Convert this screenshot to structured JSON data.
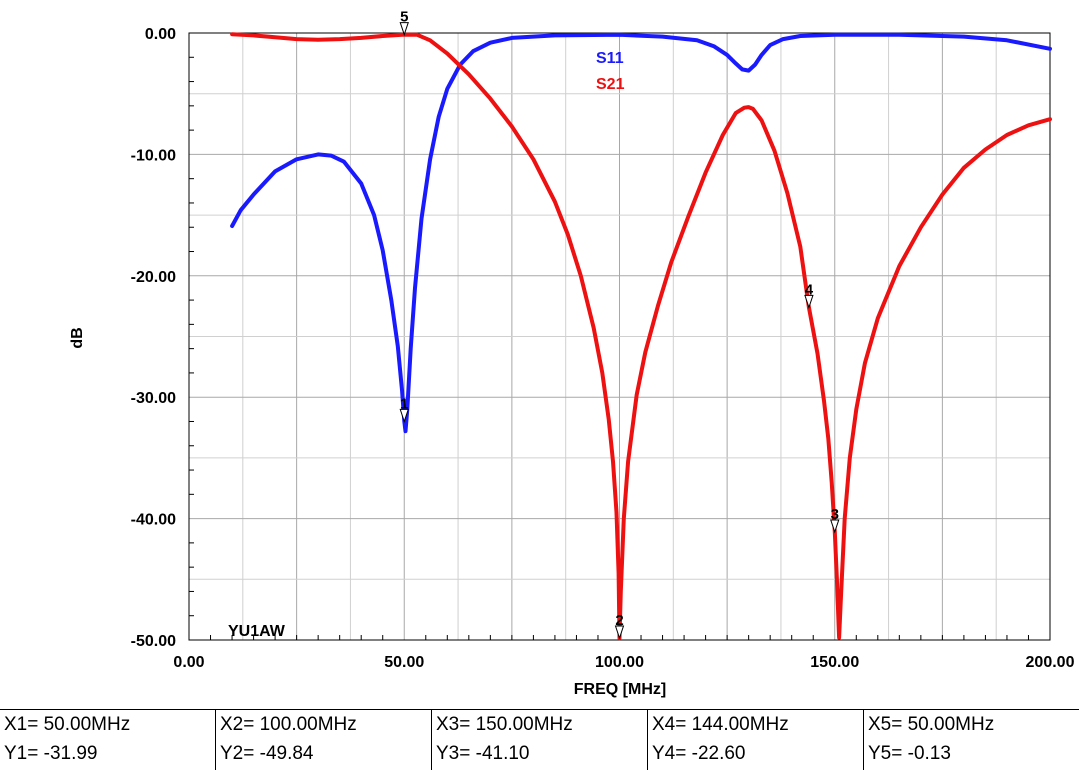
{
  "chart_data": {
    "type": "line",
    "xlabel": "FREQ [MHz]",
    "ylabel": "dB",
    "xlim": [
      0,
      200
    ],
    "ylim": [
      -50,
      0
    ],
    "x_ticks": [
      "0.00",
      "50.00",
      "100.00",
      "150.00",
      "200.00"
    ],
    "y_ticks": [
      "0.00",
      "-10.00",
      "-20.00",
      "-30.00",
      "-40.00",
      "-50.00"
    ],
    "grid": true,
    "legend_position": "top-center",
    "annotation": "YU1AW",
    "series": [
      {
        "name": "S11",
        "color": "#1a1aff",
        "points": [
          [
            10,
            -15.9
          ],
          [
            12,
            -14.6
          ],
          [
            15,
            -13.3
          ],
          [
            20,
            -11.4
          ],
          [
            25,
            -10.4
          ],
          [
            30,
            -10.0
          ],
          [
            33,
            -10.1
          ],
          [
            36,
            -10.6
          ],
          [
            40,
            -12.4
          ],
          [
            43,
            -15.0
          ],
          [
            45,
            -17.9
          ],
          [
            47,
            -22.0
          ],
          [
            48.5,
            -25.8
          ],
          [
            49.5,
            -29.5
          ],
          [
            50,
            -31.99
          ],
          [
            50.3,
            -32.8
          ],
          [
            50.7,
            -31.0
          ],
          [
            51.5,
            -26.0
          ],
          [
            52.5,
            -21.0
          ],
          [
            54,
            -15.3
          ],
          [
            56,
            -10.4
          ],
          [
            58,
            -6.9
          ],
          [
            60,
            -4.6
          ],
          [
            63,
            -2.6
          ],
          [
            66,
            -1.5
          ],
          [
            70,
            -0.8
          ],
          [
            75,
            -0.4
          ],
          [
            85,
            -0.2
          ],
          [
            100,
            -0.15
          ],
          [
            110,
            -0.3
          ],
          [
            118,
            -0.6
          ],
          [
            122,
            -1.1
          ],
          [
            125,
            -1.8
          ],
          [
            127,
            -2.5
          ],
          [
            128.5,
            -3.0
          ],
          [
            130,
            -3.1
          ],
          [
            131.5,
            -2.6
          ],
          [
            133,
            -1.8
          ],
          [
            135,
            -1.0
          ],
          [
            138,
            -0.5
          ],
          [
            142,
            -0.25
          ],
          [
            150,
            -0.15
          ],
          [
            165,
            -0.15
          ],
          [
            180,
            -0.3
          ],
          [
            190,
            -0.6
          ],
          [
            200,
            -1.3
          ]
        ]
      },
      {
        "name": "S21",
        "color": "#ee1111",
        "points": [
          [
            10,
            -0.1
          ],
          [
            15,
            -0.2
          ],
          [
            20,
            -0.35
          ],
          [
            25,
            -0.5
          ],
          [
            30,
            -0.55
          ],
          [
            35,
            -0.5
          ],
          [
            40,
            -0.4
          ],
          [
            45,
            -0.25
          ],
          [
            50,
            -0.13
          ],
          [
            53,
            -0.15
          ],
          [
            56,
            -0.6
          ],
          [
            60,
            -1.7
          ],
          [
            65,
            -3.4
          ],
          [
            70,
            -5.4
          ],
          [
            75,
            -7.7
          ],
          [
            80,
            -10.4
          ],
          [
            85,
            -13.9
          ],
          [
            88,
            -16.6
          ],
          [
            91,
            -20.0
          ],
          [
            94,
            -24.3
          ],
          [
            96,
            -28.0
          ],
          [
            97.5,
            -31.8
          ],
          [
            98.5,
            -35.3
          ],
          [
            99.3,
            -39.5
          ],
          [
            99.8,
            -44.5
          ],
          [
            100,
            -49.84
          ],
          [
            100.3,
            -46.0
          ],
          [
            101,
            -40.0
          ],
          [
            102,
            -35.3
          ],
          [
            104,
            -29.8
          ],
          [
            106,
            -26.3
          ],
          [
            109,
            -22.4
          ],
          [
            112,
            -18.9
          ],
          [
            116,
            -15.1
          ],
          [
            120,
            -11.5
          ],
          [
            124,
            -8.4
          ],
          [
            127,
            -6.6
          ],
          [
            129,
            -6.15
          ],
          [
            130,
            -6.1
          ],
          [
            131,
            -6.25
          ],
          [
            133,
            -7.2
          ],
          [
            136,
            -9.7
          ],
          [
            139,
            -13.2
          ],
          [
            142,
            -17.6
          ],
          [
            144,
            -22.6
          ],
          [
            146,
            -26.4
          ],
          [
            147.5,
            -30.3
          ],
          [
            148.5,
            -33.4
          ],
          [
            149.3,
            -37.0
          ],
          [
            150,
            -41.1
          ],
          [
            150.5,
            -45.0
          ],
          [
            151,
            -49.8
          ],
          [
            151.5,
            -46.0
          ],
          [
            152.3,
            -40.0
          ],
          [
            153.5,
            -35.0
          ],
          [
            155,
            -31.0
          ],
          [
            157,
            -27.2
          ],
          [
            160,
            -23.5
          ],
          [
            165,
            -19.2
          ],
          [
            170,
            -16.0
          ],
          [
            175,
            -13.3
          ],
          [
            180,
            -11.1
          ],
          [
            185,
            -9.6
          ],
          [
            190,
            -8.4
          ],
          [
            195,
            -7.6
          ],
          [
            200,
            -7.1
          ]
        ]
      }
    ],
    "markers": [
      {
        "id": "1",
        "series": "S11",
        "x": 50.0,
        "y": -31.99
      },
      {
        "id": "2",
        "series": "S21",
        "x": 100.0,
        "y": -49.84
      },
      {
        "id": "3",
        "series": "S21",
        "x": 150.0,
        "y": -41.1
      },
      {
        "id": "4",
        "series": "S21",
        "x": 144.0,
        "y": -22.6
      },
      {
        "id": "5",
        "series": "S21",
        "x": 50.0,
        "y": -0.13
      }
    ]
  },
  "marker_table": [
    {
      "x_text": "X1= 50.00MHz",
      "y_text": "Y1= -31.99"
    },
    {
      "x_text": "X2= 100.00MHz",
      "y_text": "Y2= -49.84"
    },
    {
      "x_text": "X3= 150.00MHz",
      "y_text": "Y3= -41.10"
    },
    {
      "x_text": "X4= 144.00MHz",
      "y_text": "Y4= -22.60"
    },
    {
      "x_text": "X5= 50.00MHz",
      "y_text": "Y5= -0.13"
    }
  ]
}
